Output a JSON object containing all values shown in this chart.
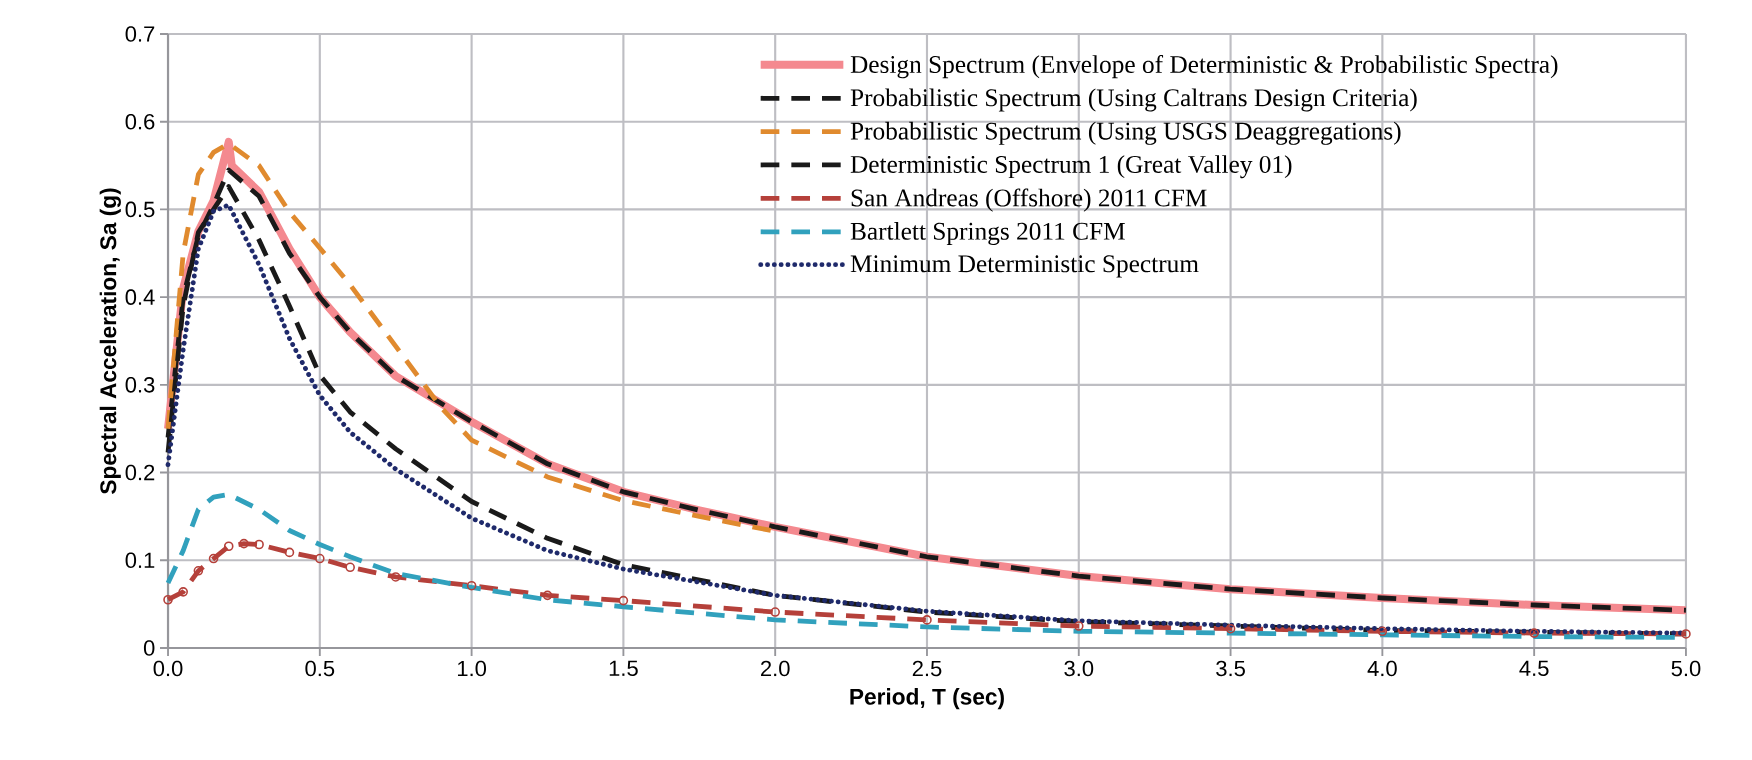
{
  "chart_data": {
    "type": "line",
    "xlabel": "Period, T (sec)",
    "ylabel": "Spectral Acceleration, Sa (g)",
    "xlim": [
      0,
      5
    ],
    "ylim": [
      0,
      0.7
    ],
    "xticks": [
      {
        "value": 0,
        "label": "0.0"
      },
      {
        "value": 0.5,
        "label": "0.5"
      },
      {
        "value": 1,
        "label": "1.0"
      },
      {
        "value": 1.5,
        "label": "1.5"
      },
      {
        "value": 2,
        "label": "2.0"
      },
      {
        "value": 2.5,
        "label": "2.5"
      },
      {
        "value": 3,
        "label": "3.0"
      },
      {
        "value": 3.5,
        "label": "3.5"
      },
      {
        "value": 4,
        "label": "4.0"
      },
      {
        "value": 4.5,
        "label": "4.5"
      },
      {
        "value": 5,
        "label": "5.0"
      }
    ],
    "yticks": [
      0,
      0.1,
      0.2,
      0.3,
      0.4,
      0.5,
      0.6,
      0.7
    ],
    "grid": true,
    "legend": "top right",
    "series": [
      {
        "name": "Design Spectrum (Envelope of Deterministic & Probabilistic Spectra)",
        "color": "#f4898f",
        "line_style": "solid",
        "x": [
          0,
          0.05,
          0.1,
          0.15,
          0.2,
          0.21,
          0.3,
          0.4,
          0.5,
          0.6,
          0.75,
          1,
          1.25,
          1.5,
          1.75,
          2,
          2.5,
          3,
          3.5,
          4,
          4.5,
          5
        ],
        "values": [
          0.25,
          0.41,
          0.475,
          0.51,
          0.577,
          0.55,
          0.52,
          0.455,
          0.4,
          0.36,
          0.31,
          0.258,
          0.21,
          0.178,
          0.157,
          0.138,
          0.104,
          0.082,
          0.067,
          0.057,
          0.049,
          0.043
        ]
      },
      {
        "name": "Probabilistic Spectrum (Using Caltrans Design Criteria)",
        "color": "#1a1a1a",
        "line_style": "dashed",
        "x": [
          0,
          0.05,
          0.1,
          0.15,
          0.2,
          0.3,
          0.4,
          0.5,
          0.6,
          0.75,
          1,
          1.25,
          1.5,
          1.75,
          2,
          2.5,
          3,
          3.5,
          4,
          4.5,
          5
        ],
        "values": [
          0.24,
          0.4,
          0.47,
          0.505,
          0.545,
          0.515,
          0.45,
          0.4,
          0.36,
          0.31,
          0.258,
          0.21,
          0.178,
          0.157,
          0.138,
          0.104,
          0.082,
          0.067,
          0.057,
          0.049,
          0.043
        ]
      },
      {
        "name": "Probabilistic Spectrum (Using USGS Deaggregations)",
        "color": "#e08a2e",
        "line_style": "dashed",
        "x": [
          0,
          0.05,
          0.1,
          0.15,
          0.2,
          0.3,
          0.4,
          0.5,
          0.6,
          0.75,
          0.9,
          1,
          1.25,
          1.5,
          1.75,
          2
        ],
        "values": [
          0.25,
          0.45,
          0.54,
          0.565,
          0.575,
          0.55,
          0.497,
          0.456,
          0.414,
          0.344,
          0.274,
          0.237,
          0.195,
          0.168,
          0.15,
          0.133
        ]
      },
      {
        "name": "Deterministic Spectrum 1 (Great Valley 01)",
        "color": "#1a1a1a",
        "line_style": "dashed",
        "x": [
          0,
          0.05,
          0.1,
          0.15,
          0.2,
          0.3,
          0.4,
          0.5,
          0.6,
          0.75,
          1,
          1.25,
          1.5,
          2,
          2.5,
          3,
          3.5,
          4,
          4.5,
          5
        ],
        "values": [
          0.223,
          0.39,
          0.474,
          0.5,
          0.526,
          0.465,
          0.39,
          0.311,
          0.269,
          0.227,
          0.167,
          0.125,
          0.095,
          0.06,
          0.041,
          0.03,
          0.025,
          0.02,
          0.018,
          0.016
        ]
      },
      {
        "name": "San Andreas (Offshore) 2011 CFM",
        "color": "#b5403a",
        "line_style": "dashed",
        "marker": "circle",
        "x": [
          0,
          0.05,
          0.1,
          0.15,
          0.2,
          0.25,
          0.3,
          0.4,
          0.5,
          0.6,
          0.75,
          1,
          1.25,
          1.5,
          2,
          2.5,
          3,
          3.5,
          4,
          4.5,
          5
        ],
        "values": [
          0.055,
          0.064,
          0.088,
          0.102,
          0.116,
          0.119,
          0.118,
          0.109,
          0.102,
          0.092,
          0.081,
          0.071,
          0.06,
          0.054,
          0.041,
          0.032,
          0.025,
          0.022,
          0.019,
          0.017,
          0.016
        ]
      },
      {
        "name": "Bartlett Springs 2011 CFM",
        "color": "#31a1bd",
        "line_style": "dashed",
        "x": [
          0,
          0.05,
          0.1,
          0.15,
          0.2,
          0.3,
          0.4,
          0.5,
          0.6,
          0.75,
          1,
          1.25,
          1.5,
          2,
          2.5,
          3,
          3.5,
          4,
          4.5,
          5
        ],
        "values": [
          0.074,
          0.111,
          0.158,
          0.172,
          0.175,
          0.158,
          0.134,
          0.118,
          0.104,
          0.085,
          0.069,
          0.055,
          0.047,
          0.032,
          0.024,
          0.019,
          0.017,
          0.015,
          0.013,
          0.012
        ]
      },
      {
        "name": "Minimum Deterministic Spectrum",
        "color": "#1f2a6b",
        "line_style": "dotted",
        "x": [
          0,
          0.05,
          0.1,
          0.15,
          0.2,
          0.3,
          0.4,
          0.5,
          0.6,
          0.75,
          1,
          1.25,
          1.5,
          2,
          2.5,
          3,
          3.5,
          4,
          4.5,
          5
        ],
        "values": [
          0.209,
          0.34,
          0.455,
          0.498,
          0.505,
          0.437,
          0.353,
          0.288,
          0.246,
          0.204,
          0.148,
          0.111,
          0.09,
          0.06,
          0.042,
          0.031,
          0.026,
          0.022,
          0.019,
          0.017
        ]
      }
    ]
  }
}
